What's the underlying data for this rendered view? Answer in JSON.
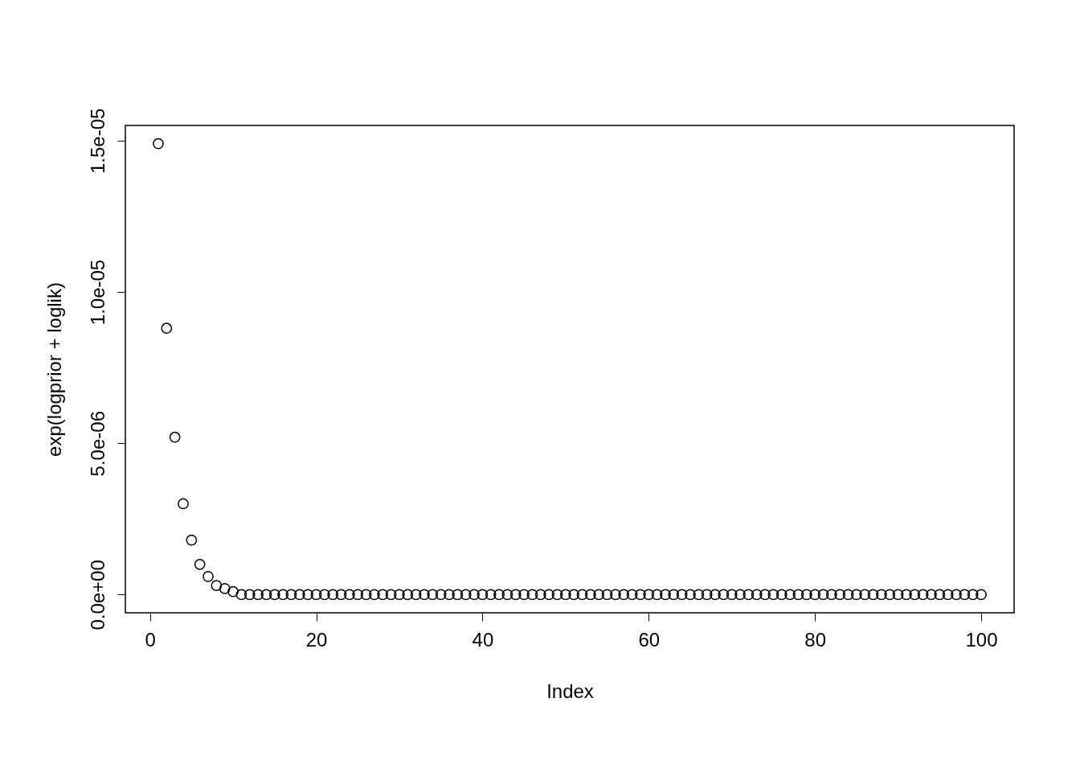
{
  "chart_data": {
    "type": "scatter",
    "xlabel": "Index",
    "ylabel": "exp(logprior + loglik)",
    "x": [
      1,
      2,
      3,
      4,
      5,
      6,
      7,
      8,
      9,
      10,
      11,
      12,
      13,
      14,
      15,
      16,
      17,
      18,
      19,
      20,
      21,
      22,
      23,
      24,
      25,
      26,
      27,
      28,
      29,
      30,
      31,
      32,
      33,
      34,
      35,
      36,
      37,
      38,
      39,
      40,
      41,
      42,
      43,
      44,
      45,
      46,
      47,
      48,
      49,
      50,
      51,
      52,
      53,
      54,
      55,
      56,
      57,
      58,
      59,
      60,
      61,
      62,
      63,
      64,
      65,
      66,
      67,
      68,
      69,
      70,
      71,
      72,
      73,
      74,
      75,
      76,
      77,
      78,
      79,
      80,
      81,
      82,
      83,
      84,
      85,
      86,
      87,
      88,
      89,
      90,
      91,
      92,
      93,
      94,
      95,
      96,
      97,
      98,
      99,
      100
    ],
    "series": [
      {
        "color": "#000000",
        "values": [
          1.49e-05,
          8.8e-06,
          5.2e-06,
          3e-06,
          1.8e-06,
          1e-06,
          6e-07,
          3e-07,
          2e-07,
          1e-07,
          0,
          0,
          0,
          0,
          0,
          0,
          0,
          0,
          0,
          0,
          0,
          0,
          0,
          0,
          0,
          0,
          0,
          0,
          0,
          0,
          0,
          0,
          0,
          0,
          0,
          0,
          0,
          0,
          0,
          0,
          0,
          0,
          0,
          0,
          0,
          0,
          0,
          0,
          0,
          0,
          0,
          0,
          0,
          0,
          0,
          0,
          0,
          0,
          0,
          0,
          0,
          0,
          0,
          0,
          0,
          0,
          0,
          0,
          0,
          0,
          0,
          0,
          0,
          0,
          0,
          0,
          0,
          0,
          0,
          0,
          0,
          0,
          0,
          0,
          0,
          0,
          0,
          0,
          0,
          0,
          0,
          0,
          0,
          0,
          0,
          0,
          0,
          0,
          0,
          0
        ]
      }
    ],
    "xlim": [
      -2.96,
      103.96
    ],
    "xticks": [
      0,
      20,
      40,
      60,
      80,
      100
    ],
    "ylim": [
      -6e-07,
      1.55e-05
    ],
    "yticks": [
      {
        "value": 0,
        "label": "0.0e+00"
      },
      {
        "value": 5e-06,
        "label": "5.0e-06"
      },
      {
        "value": 1e-05,
        "label": "1.0e-05"
      },
      {
        "value": 1.5e-05,
        "label": "1.5e-05"
      }
    ],
    "marker": "circle",
    "grid": false,
    "legend": false
  }
}
